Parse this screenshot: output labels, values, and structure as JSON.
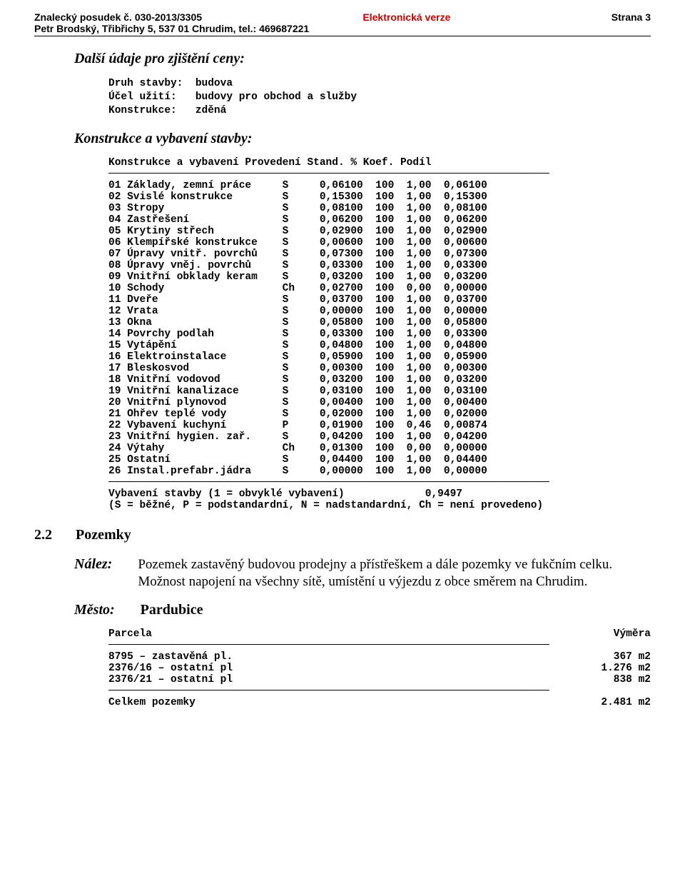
{
  "header": {
    "left_line1": "Znalecký posudek č. 030-2013/3305",
    "center_line1": "Elektronická verze",
    "right_line1": "Strana 3",
    "left_line2": "Petr Brodský, Třibřichy 5, 537 01 Chrudim, tel.: 469687221"
  },
  "section1_title": "Další údaje pro zjištění ceny:",
  "stavba": {
    "druh_label": "Druh stavby:",
    "druh_value": "budova",
    "ucel_label": "Účel užití:",
    "ucel_value": "budovy pro obchod a služby",
    "konstrukce_label": "Konstrukce:",
    "konstrukce_value": "zděná"
  },
  "section2_title": "Konstrukce a vybavení stavby:",
  "table": {
    "head": {
      "c1": "Konstrukce a vybavení",
      "c2": "Provedení",
      "c3": "Stand.",
      "c4": "%",
      "c5": "Koef.",
      "c6": "Podíl"
    },
    "rows": [
      {
        "n": "01",
        "name": "Základy, zemní práce",
        "p": "S",
        "stand": "0,06100",
        "pct": "100",
        "koef": "1,00",
        "podil": "0,06100"
      },
      {
        "n": "02",
        "name": "Svislé konstrukce",
        "p": "S",
        "stand": "0,15300",
        "pct": "100",
        "koef": "1,00",
        "podil": "0,15300"
      },
      {
        "n": "03",
        "name": "Stropy",
        "p": "S",
        "stand": "0,08100",
        "pct": "100",
        "koef": "1,00",
        "podil": "0,08100"
      },
      {
        "n": "04",
        "name": "Zastřešení",
        "p": "S",
        "stand": "0,06200",
        "pct": "100",
        "koef": "1,00",
        "podil": "0,06200"
      },
      {
        "n": "05",
        "name": "Krytiny střech",
        "p": "S",
        "stand": "0,02900",
        "pct": "100",
        "koef": "1,00",
        "podil": "0,02900"
      },
      {
        "n": "06",
        "name": "Klempířské konstrukce",
        "p": "S",
        "stand": "0,00600",
        "pct": "100",
        "koef": "1,00",
        "podil": "0,00600"
      },
      {
        "n": "07",
        "name": "Úpravy vnitř. povrchů",
        "p": "S",
        "stand": "0,07300",
        "pct": "100",
        "koef": "1,00",
        "podil": "0,07300"
      },
      {
        "n": "08",
        "name": "Úpravy vněj. povrchů",
        "p": "S",
        "stand": "0,03300",
        "pct": "100",
        "koef": "1,00",
        "podil": "0,03300"
      },
      {
        "n": "09",
        "name": "Vnitřní obklady keram",
        "p": "S",
        "stand": "0,03200",
        "pct": "100",
        "koef": "1,00",
        "podil": "0,03200"
      },
      {
        "n": "10",
        "name": "Schody",
        "p": "Ch",
        "stand": "0,02700",
        "pct": "100",
        "koef": "0,00",
        "podil": "0,00000"
      },
      {
        "n": "11",
        "name": "Dveře",
        "p": "S",
        "stand": "0,03700",
        "pct": "100",
        "koef": "1,00",
        "podil": "0,03700"
      },
      {
        "n": "12",
        "name": "Vrata",
        "p": "S",
        "stand": "0,00000",
        "pct": "100",
        "koef": "1,00",
        "podil": "0,00000"
      },
      {
        "n": "13",
        "name": "Okna",
        "p": "S",
        "stand": "0,05800",
        "pct": "100",
        "koef": "1,00",
        "podil": "0,05800"
      },
      {
        "n": "14",
        "name": "Povrchy podlah",
        "p": "S",
        "stand": "0,03300",
        "pct": "100",
        "koef": "1,00",
        "podil": "0,03300"
      },
      {
        "n": "15",
        "name": "Vytápění",
        "p": "S",
        "stand": "0,04800",
        "pct": "100",
        "koef": "1,00",
        "podil": "0,04800"
      },
      {
        "n": "16",
        "name": "Elektroinstalace",
        "p": "S",
        "stand": "0,05900",
        "pct": "100",
        "koef": "1,00",
        "podil": "0,05900"
      },
      {
        "n": "17",
        "name": "Bleskosvod",
        "p": "S",
        "stand": "0,00300",
        "pct": "100",
        "koef": "1,00",
        "podil": "0,00300"
      },
      {
        "n": "18",
        "name": "Vnitřní vodovod",
        "p": "S",
        "stand": "0,03200",
        "pct": "100",
        "koef": "1,00",
        "podil": "0,03200"
      },
      {
        "n": "19",
        "name": "Vnitřní kanalizace",
        "p": "S",
        "stand": "0,03100",
        "pct": "100",
        "koef": "1,00",
        "podil": "0,03100"
      },
      {
        "n": "20",
        "name": "Vnitřní plynovod",
        "p": "S",
        "stand": "0,00400",
        "pct": "100",
        "koef": "1,00",
        "podil": "0,00400"
      },
      {
        "n": "21",
        "name": "Ohřev teplé vody",
        "p": "S",
        "stand": "0,02000",
        "pct": "100",
        "koef": "1,00",
        "podil": "0,02000"
      },
      {
        "n": "22",
        "name": "Vybavení kuchyní",
        "p": "P",
        "stand": "0,01900",
        "pct": "100",
        "koef": "0,46",
        "podil": "0,00874"
      },
      {
        "n": "23",
        "name": "Vnitřní hygien. zař.",
        "p": "S",
        "stand": "0,04200",
        "pct": "100",
        "koef": "1,00",
        "podil": "0,04200"
      },
      {
        "n": "24",
        "name": "Výtahy",
        "p": "Ch",
        "stand": "0,01300",
        "pct": "100",
        "koef": "0,00",
        "podil": "0,00000"
      },
      {
        "n": "25",
        "name": "Ostatní",
        "p": "S",
        "stand": "0,04400",
        "pct": "100",
        "koef": "1,00",
        "podil": "0,04400"
      },
      {
        "n": "26",
        "name": "Instal.prefabr.jádra",
        "p": "S",
        "stand": "0,00000",
        "pct": "100",
        "koef": "1,00",
        "podil": "0,00000"
      }
    ],
    "footer1_left": "Vybavení stavby (1 = obvyklé vybavení)",
    "footer1_right": "0,9497",
    "footer2": "(S = běžné, P = podstandardní, N = nadstandardní, Ch = není provedeno)"
  },
  "pozemky": {
    "num": "2.2",
    "title": "Pozemky",
    "nalaz_label": "Nález:",
    "nalaz_text": "Pozemek zastavěný budovou prodejny a přístřeškem a dále pozemky ve fukčním celku. Možnost napojení na  všechny sítě, umístění u výjezdu z obce směrem na Chrudim.",
    "mesto_label": "Město:",
    "mesto_value": "Pardubice",
    "parcel_head_left": "Parcela",
    "parcel_head_right": "Výměra",
    "parcels": [
      {
        "name": "8795 – zastavěná pl.",
        "area": "367 m2"
      },
      {
        "name": "2376/16 – ostatní pl",
        "area": "1.276 m2"
      },
      {
        "name": "2376/21 – ostatní pl",
        "area": "838 m2"
      }
    ],
    "total_label": "Celkem pozemky",
    "total_value": "2.481 m2"
  },
  "style": {
    "header_accent": "#cc0000",
    "dash": "───────────────────────────────────────────────────────────────────────"
  }
}
